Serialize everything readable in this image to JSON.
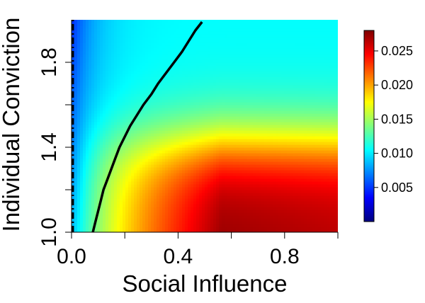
{
  "chart_data": {
    "type": "heatmap",
    "title": "",
    "xlabel": "Social Influence",
    "ylabel": "Individual Conviction",
    "xlim": [
      0.0,
      1.0
    ],
    "ylim": [
      1.0,
      2.0
    ],
    "x_ticks": [
      0.0,
      0.4,
      0.8
    ],
    "x_minor_ticks": [
      0.2,
      0.6,
      1.0
    ],
    "x_tick_labels": [
      "0.0",
      "0.4",
      "0.8"
    ],
    "y_ticks": [
      1.0,
      1.4,
      1.8
    ],
    "y_minor_ticks": [
      1.2,
      1.6
    ],
    "y_tick_labels": [
      "1.0",
      "1.4",
      "1.8"
    ],
    "colorbar": {
      "min": 0.0,
      "max": 0.028,
      "ticks": [
        0.005,
        0.01,
        0.015,
        0.02,
        0.025
      ],
      "tick_labels": [
        "0.005",
        "0.010",
        "0.015",
        "0.020",
        "0.025"
      ],
      "colormap": "jet",
      "colors": [
        "#00007f",
        "#0000ff",
        "#007fff",
        "#00ffff",
        "#7fff7f",
        "#ffff00",
        "#ff7f00",
        "#ff0000",
        "#7f0000"
      ]
    },
    "contour_solid": {
      "points": [
        [
          0.08,
          1.0
        ],
        [
          0.09,
          1.05
        ],
        [
          0.1,
          1.1
        ],
        [
          0.11,
          1.15
        ],
        [
          0.12,
          1.2
        ],
        [
          0.135,
          1.25
        ],
        [
          0.15,
          1.3
        ],
        [
          0.165,
          1.35
        ],
        [
          0.18,
          1.4
        ],
        [
          0.2,
          1.45
        ],
        [
          0.22,
          1.5
        ],
        [
          0.245,
          1.55
        ],
        [
          0.27,
          1.6
        ],
        [
          0.3,
          1.65
        ],
        [
          0.325,
          1.7
        ],
        [
          0.355,
          1.75
        ],
        [
          0.385,
          1.8
        ],
        [
          0.415,
          1.85
        ],
        [
          0.44,
          1.9
        ],
        [
          0.465,
          1.95
        ],
        [
          0.49,
          1.99
        ]
      ]
    },
    "contour_dashed": {
      "points": [
        [
          0.005,
          1.0
        ],
        [
          0.005,
          2.0
        ]
      ]
    },
    "grid": false,
    "legend": "none"
  }
}
